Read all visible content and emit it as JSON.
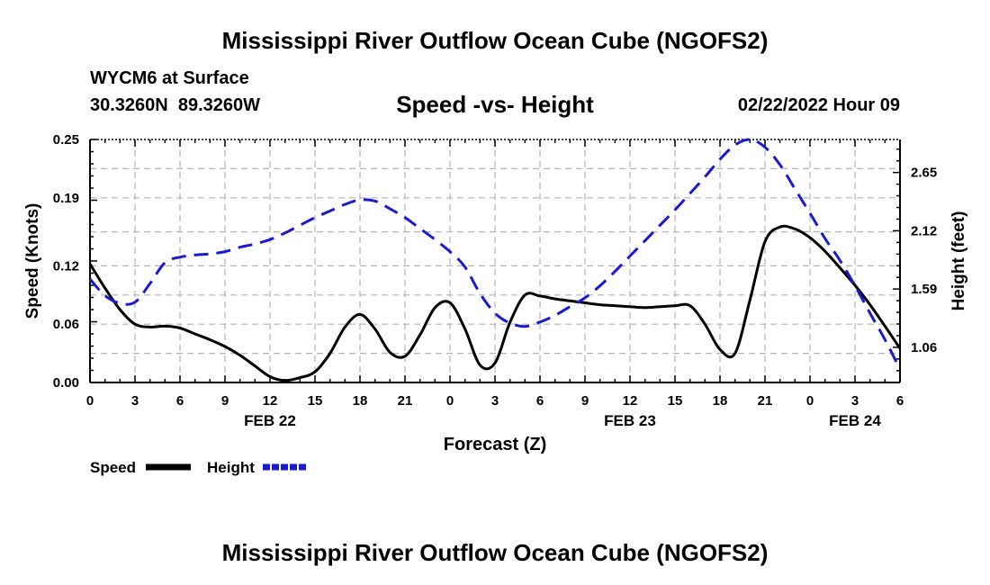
{
  "header": {
    "title": "Mississippi River Outflow Ocean Cube (NGOFS2)",
    "footer_title": "Mississippi River Outflow Ocean Cube (NGOFS2)",
    "station": "WYCM6 at Surface",
    "latitude": "30.3260N",
    "longitude": "89.3260W",
    "subtitle": "Speed -vs- Height",
    "datetime": "02/22/2022 Hour 09"
  },
  "colors": {
    "speed": "#000000",
    "height": "#1a1ad2",
    "grid": "#b4b4b4"
  },
  "chart_data": {
    "type": "line",
    "title": "Speed -vs- Height",
    "xlabel": "Forecast (Z)",
    "ylabel": "Speed (Knots)",
    "y2label": "Height (feet)",
    "xlim": [
      0,
      54
    ],
    "ylim": [
      0,
      0.25
    ],
    "y2lim": [
      0.74,
      2.95
    ],
    "x_ticks": [
      0,
      3,
      6,
      9,
      12,
      15,
      18,
      21,
      24,
      27,
      30,
      33,
      36,
      39,
      42,
      45,
      48,
      51,
      54
    ],
    "x_tick_labels": [
      "0",
      "3",
      "6",
      "9",
      "12",
      "15",
      "18",
      "21",
      "0",
      "3",
      "6",
      "9",
      "12",
      "15",
      "18",
      "21",
      "0",
      "3",
      "6"
    ],
    "date_labels": [
      {
        "x": 12,
        "label": "FEB 22"
      },
      {
        "x": 36,
        "label": "FEB 23"
      },
      {
        "x": 51,
        "label": "FEB 24"
      }
    ],
    "y_ticks": [
      0.0,
      0.06,
      0.12,
      0.19,
      0.25
    ],
    "y_tick_labels": [
      "0.00",
      "0.06",
      "0.12",
      "0.19",
      "0.25"
    ],
    "y2_ticks": [
      1.06,
      1.59,
      2.12,
      2.65
    ],
    "y2_tick_labels": [
      "1.06",
      "1.59",
      "2.12",
      "2.65"
    ],
    "legend": [
      "Speed",
      "Height"
    ],
    "series": [
      {
        "name": "Speed",
        "axis": "left",
        "style": "solid",
        "x": [
          0,
          1,
          2,
          3,
          4,
          5,
          6,
          7,
          8,
          9,
          10,
          11,
          12,
          13,
          14,
          15,
          16,
          17,
          18,
          19,
          20,
          21,
          22,
          23,
          24,
          25,
          26,
          27,
          28,
          29,
          30,
          31,
          32,
          33,
          34,
          35,
          36,
          37,
          38,
          39,
          40,
          41,
          42,
          43,
          44,
          45,
          46,
          47,
          48,
          49,
          50,
          51,
          52,
          53,
          54
        ],
        "values": [
          0.122,
          0.097,
          0.075,
          0.06,
          0.057,
          0.058,
          0.056,
          0.05,
          0.044,
          0.037,
          0.028,
          0.017,
          0.006,
          0.002,
          0.005,
          0.011,
          0.03,
          0.057,
          0.07,
          0.055,
          0.031,
          0.027,
          0.049,
          0.077,
          0.082,
          0.055,
          0.018,
          0.02,
          0.062,
          0.09,
          0.089,
          0.086,
          0.084,
          0.082,
          0.08,
          0.079,
          0.078,
          0.077,
          0.078,
          0.079,
          0.079,
          0.06,
          0.034,
          0.03,
          0.085,
          0.145,
          0.16,
          0.158,
          0.149,
          0.135,
          0.118,
          0.1,
          0.08,
          0.058,
          0.035
        ]
      },
      {
        "name": "Height",
        "axis": "right",
        "style": "dashed",
        "x": [
          0,
          1,
          2,
          3,
          4,
          5,
          6,
          7,
          8,
          9,
          10,
          11,
          12,
          13,
          14,
          15,
          16,
          17,
          18,
          19,
          20,
          21,
          22,
          23,
          24,
          25,
          26,
          27,
          28,
          29,
          30,
          31,
          32,
          33,
          34,
          35,
          36,
          37,
          38,
          39,
          40,
          41,
          42,
          43,
          44,
          45,
          46,
          47,
          48,
          49,
          50,
          51,
          52,
          53,
          54
        ],
        "values": [
          1.68,
          1.53,
          1.46,
          1.47,
          1.64,
          1.83,
          1.88,
          1.9,
          1.91,
          1.93,
          1.97,
          2.0,
          2.04,
          2.1,
          2.17,
          2.24,
          2.3,
          2.36,
          2.4,
          2.39,
          2.32,
          2.24,
          2.14,
          2.04,
          1.93,
          1.79,
          1.55,
          1.37,
          1.28,
          1.25,
          1.29,
          1.35,
          1.43,
          1.51,
          1.62,
          1.75,
          1.89,
          2.03,
          2.17,
          2.31,
          2.46,
          2.61,
          2.77,
          2.9,
          2.95,
          2.88,
          2.72,
          2.5,
          2.28,
          2.05,
          1.85,
          1.62,
          1.37,
          1.13,
          0.86
        ]
      }
    ]
  }
}
